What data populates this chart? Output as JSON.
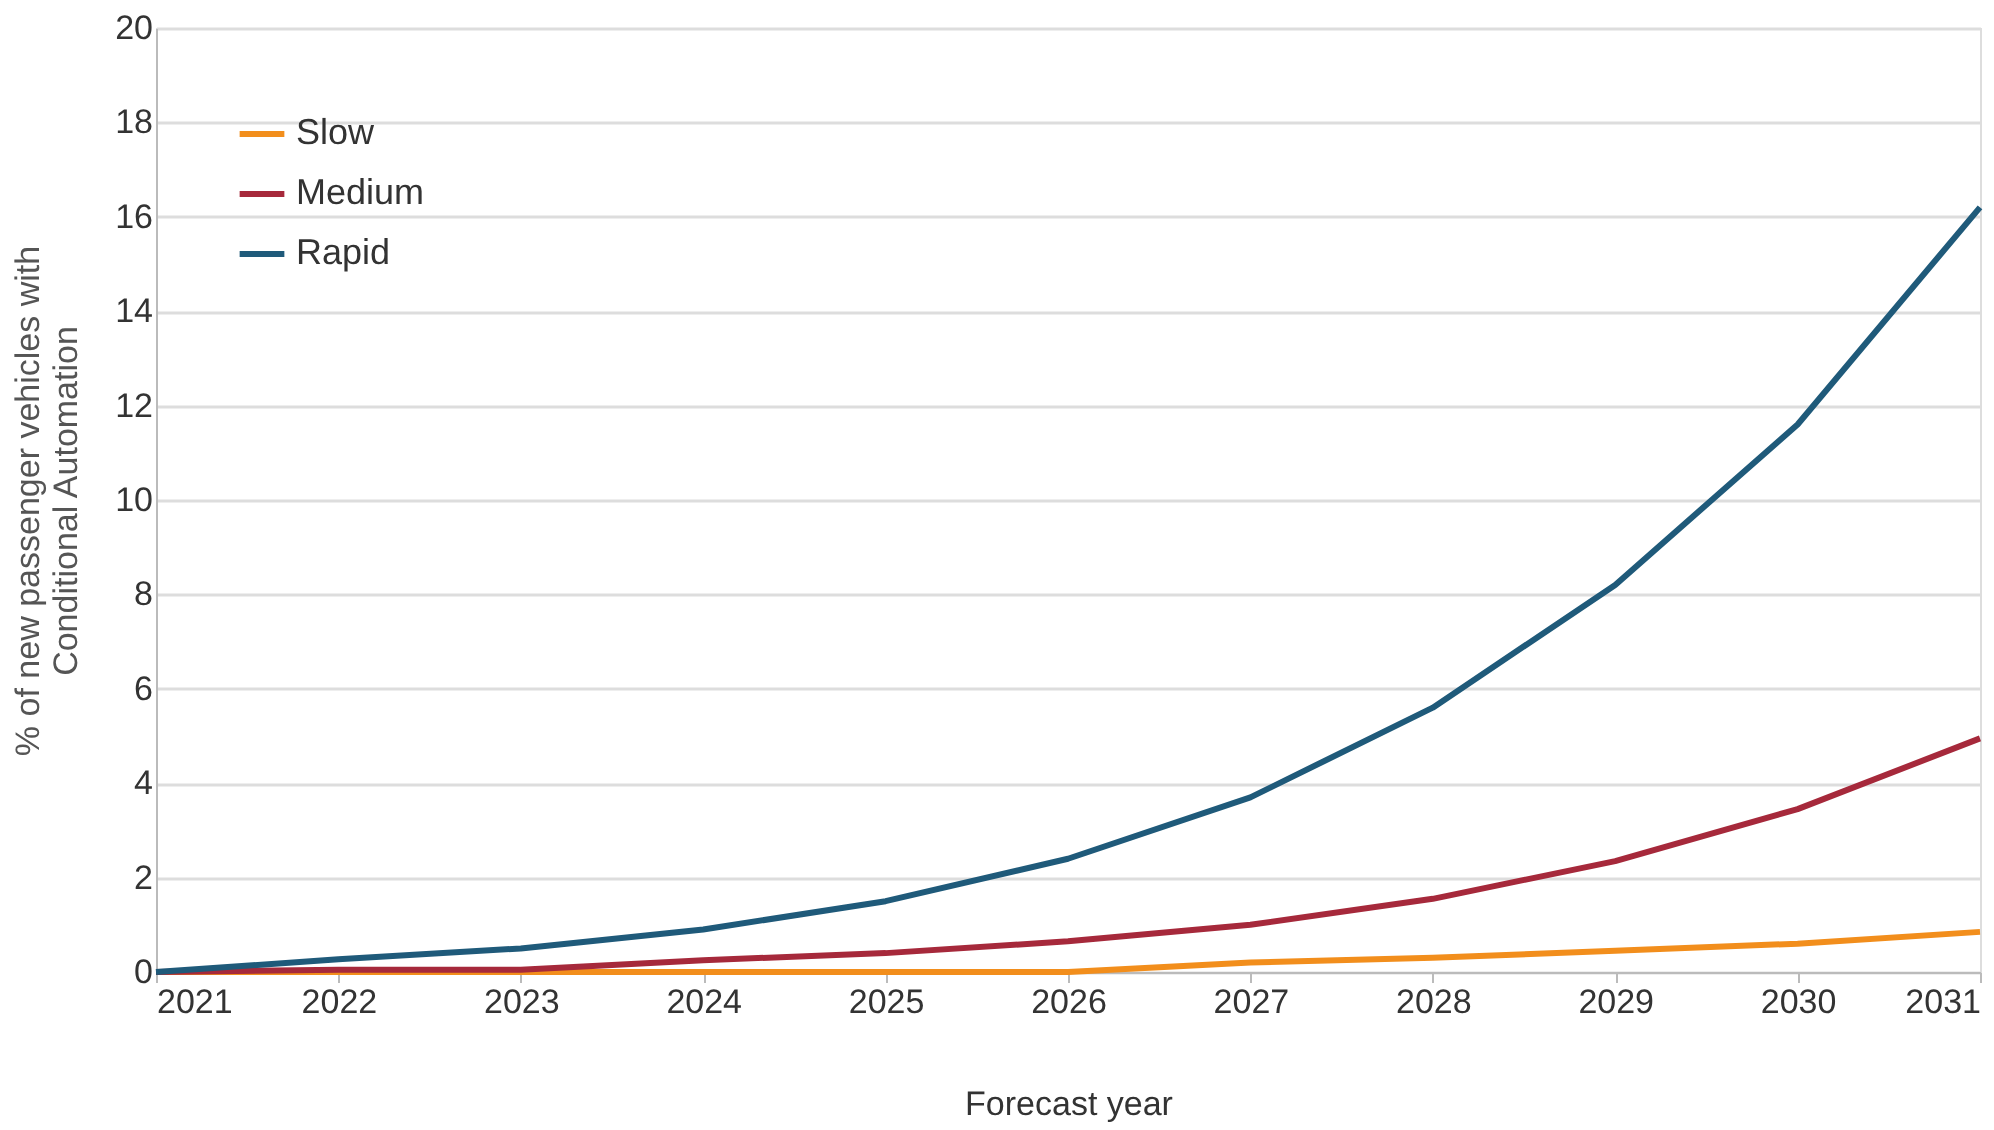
{
  "chart_data": {
    "type": "line",
    "xlabel": "Forecast year",
    "ylabel": "% of new passenger vehicles with\nConditional Automation",
    "x": [
      2021,
      2022,
      2023,
      2024,
      2025,
      2026,
      2027,
      2028,
      2029,
      2030,
      2031
    ],
    "series": [
      {
        "name": "Slow",
        "color": "#f28e1c",
        "values": [
          0,
          0,
          0,
          0,
          0,
          0,
          0.2,
          0.3,
          0.45,
          0.6,
          0.85
        ]
      },
      {
        "name": "Medium",
        "color": "#a6293b",
        "values": [
          0,
          0.05,
          0.05,
          0.25,
          0.4,
          0.65,
          1.0,
          1.55,
          2.35,
          3.45,
          4.95
        ]
      },
      {
        "name": "Rapid",
        "color": "#1f5a7a",
        "values": [
          0,
          0.27,
          0.5,
          0.9,
          1.5,
          2.4,
          3.7,
          5.6,
          8.2,
          11.6,
          16.2
        ]
      }
    ],
    "xlim": [
      2021,
      2031
    ],
    "xticks": [
      2021,
      2022,
      2023,
      2024,
      2025,
      2026,
      2027,
      2028,
      2029,
      2030,
      2031
    ],
    "ylim": [
      0,
      20
    ],
    "yticks": [
      0,
      2,
      4,
      6,
      8,
      10,
      12,
      14,
      16,
      18,
      20
    ],
    "grid": "y",
    "legend": "top left",
    "marker": "none",
    "line_style": "solid"
  }
}
